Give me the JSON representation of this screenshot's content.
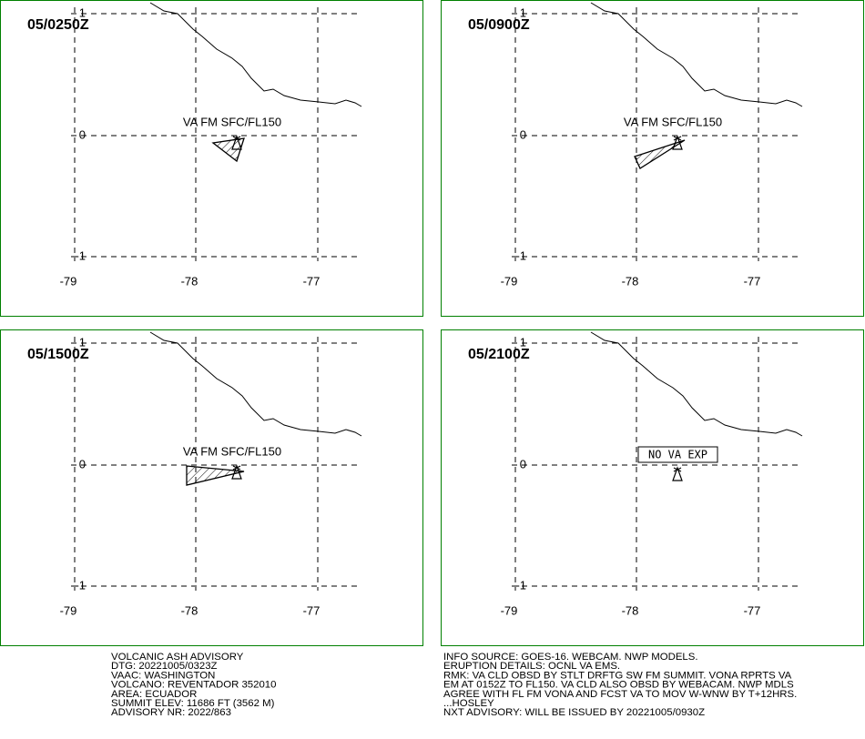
{
  "panels": [
    {
      "time": "05/0250Z",
      "label": "VA FM SFC/FL150"
    },
    {
      "time": "05/0900Z",
      "label": "VA FM SFC/FL150"
    },
    {
      "time": "05/1500Z",
      "label": "VA FM SFC/FL150"
    },
    {
      "time": "05/2100Z",
      "label": "NO VA EXP"
    }
  ],
  "lat_labels": [
    "1",
    "0",
    "-1"
  ],
  "lon_labels": [
    "-79",
    "-78",
    "-77"
  ],
  "advisory_left": [
    "VOLCANIC ASH ADVISORY",
    "DTG: 20221005/0323Z",
    "VAAC: WASHINGTON",
    "VOLCANO: REVENTADOR 352010",
    "AREA: ECUADOR",
    "SUMMIT ELEV: 11686 FT (3562 M)",
    "ADVISORY NR: 2022/863"
  ],
  "advisory_right": [
    "INFO SOURCE: GOES-16. WEBCAM. NWP MODELS.",
    "ERUPTION DETAILS: OCNL VA EMS.",
    "RMK: VA CLD OBSD BY STLT DRFTG SW FM SUMMIT. VONA RPRTS VA",
    "EM AT 0152Z TO FL150. VA CLD ALSO OBSD BY WEBACAM. NWP MDLS",
    "AGREE WITH FL FM VONA AND FCST VA TO MOV W-WNW BY T+12HRS.",
    "...HOSLEY",
    "NXT ADVISORY: WILL BE ISSUED BY 20221005/0930Z"
  ]
}
